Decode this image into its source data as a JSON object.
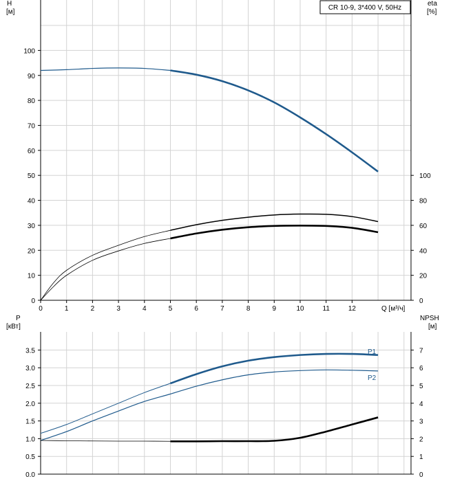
{
  "chart_data": [
    {
      "type": "line",
      "title_box": "CR 10-9, 3*400 V, 50Hz",
      "y_left_label": [
        "H",
        "[м]"
      ],
      "y_right_label": [
        "eta",
        "[%]"
      ],
      "x_label": "Q [м³/ч]",
      "x_ticks": [
        0,
        1,
        2,
        3,
        4,
        5,
        6,
        7,
        8,
        9,
        10,
        11,
        12
      ],
      "xlim": [
        0,
        14
      ],
      "ylim": [
        0,
        110
      ],
      "y_ticks": [
        0,
        10,
        20,
        30,
        40,
        50,
        60,
        70,
        80,
        90,
        100
      ],
      "eta_ticks": [
        0,
        20,
        40,
        60,
        80,
        100
      ],
      "eta_per_h": 0.5,
      "colors": {
        "head": "#1f5a8c",
        "eta": "#000000",
        "grid": "#d3d3d3",
        "axis": "#000000"
      },
      "series": [
        {
          "name": "H",
          "thin_x": [
            0,
            1,
            2,
            3,
            4,
            5
          ],
          "thin_y": [
            92,
            92.3,
            92.8,
            93,
            92.8,
            92
          ],
          "thick_x": [
            5,
            6,
            7,
            8,
            9,
            10,
            11,
            12,
            13
          ],
          "thick_y": [
            92,
            90.3,
            87.7,
            84,
            79.2,
            73.2,
            66.5,
            59.2,
            51.5
          ]
        },
        {
          "name": "eta_pump",
          "thin_x": [
            0,
            0.5,
            1,
            2,
            3,
            4,
            5
          ],
          "thin_y": [
            0,
            14,
            24,
            36,
            44,
            51,
            56
          ],
          "thick_x": [
            5,
            6,
            7,
            8,
            9,
            10,
            11,
            12,
            13
          ],
          "thick_y": [
            56,
            60.5,
            64,
            66.5,
            68.3,
            69,
            68.8,
            67,
            63
          ]
        },
        {
          "name": "eta_total",
          "thin_x": [
            0,
            0.5,
            1,
            2,
            3,
            4,
            5
          ],
          "thin_y": [
            0,
            11,
            20,
            32,
            39.5,
            45.5,
            49.5
          ],
          "thick_x": [
            5,
            6,
            7,
            8,
            9,
            10,
            11,
            12,
            13
          ],
          "thick_y": [
            49.5,
            53.5,
            56.5,
            58.5,
            59.5,
            59.8,
            59.5,
            58,
            54.5
          ]
        }
      ]
    },
    {
      "type": "line",
      "y_left_label": [
        "P",
        "[кВт]"
      ],
      "y_right_label": [
        "NPSH",
        "[м]"
      ],
      "xlim": [
        0,
        14
      ],
      "ylim": [
        0,
        4
      ],
      "y_ticks": [
        0.0,
        0.5,
        1.0,
        1.5,
        2.0,
        2.5,
        3.0,
        3.5
      ],
      "y_tick_labels": [
        "0.0",
        "0.5",
        "1.0",
        "1.5",
        "2.0",
        "2.5",
        "3.0",
        "3.5"
      ],
      "npsh_ticks": [
        0,
        1,
        2,
        3,
        4,
        5,
        6,
        7
      ],
      "npsh_per_p": 2,
      "colors": {
        "power": "#1f5a8c",
        "npsh": "#000000"
      },
      "series": [
        {
          "name": "P1",
          "label": "P1",
          "thin_x": [
            0,
            1,
            2,
            3,
            4,
            5
          ],
          "thin_y": [
            1.15,
            1.4,
            1.7,
            2.0,
            2.3,
            2.56
          ],
          "thick_x": [
            5,
            6,
            7,
            8,
            9,
            10,
            11,
            12,
            13
          ],
          "thick_y": [
            2.56,
            2.82,
            3.04,
            3.2,
            3.3,
            3.36,
            3.39,
            3.39,
            3.36
          ]
        },
        {
          "name": "P2",
          "label": "P2",
          "thin_x": [
            0,
            1,
            2,
            3,
            4,
            5,
            6,
            7,
            8,
            9,
            10,
            11,
            12,
            13
          ],
          "thin_y": [
            0.95,
            1.2,
            1.5,
            1.78,
            2.05,
            2.26,
            2.48,
            2.66,
            2.8,
            2.88,
            2.92,
            2.94,
            2.93,
            2.91
          ]
        },
        {
          "name": "NPSH",
          "thin_x": [
            0,
            1,
            2,
            3,
            4,
            5
          ],
          "thin_y": [
            1.9,
            1.88,
            1.87,
            1.86,
            1.86,
            1.85
          ],
          "thick_x": [
            5,
            6,
            7,
            8,
            9,
            10,
            11,
            12,
            13
          ],
          "thick_y": [
            1.85,
            1.85,
            1.86,
            1.86,
            1.88,
            2.05,
            2.4,
            2.8,
            3.2
          ]
        }
      ]
    }
  ]
}
